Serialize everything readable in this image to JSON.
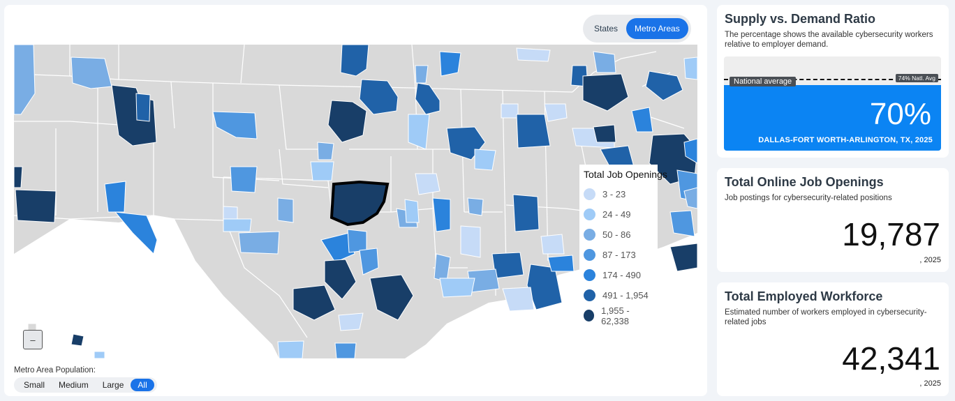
{
  "map": {
    "view_toggle": {
      "states_label": "States",
      "metro_label": "Metro Areas",
      "active": "Metro Areas"
    },
    "legend": {
      "title": "Total Job Openings",
      "items": [
        {
          "label": "3 - 23",
          "color": "#c6dbf7"
        },
        {
          "label": "24 - 49",
          "color": "#9fcbf7"
        },
        {
          "label": "50 - 86",
          "color": "#79ade4"
        },
        {
          "label": "87 - 173",
          "color": "#4f97e0"
        },
        {
          "label": "174 - 490",
          "color": "#2b83dc"
        },
        {
          "label": "491 - 1,954",
          "color": "#2062a8"
        },
        {
          "label": "1,955 - 62,338",
          "color": "#183e68"
        }
      ]
    },
    "zoom_out_label": "–",
    "population_filter": {
      "label": "Metro Area Population:",
      "options": [
        "Small",
        "Medium",
        "Large",
        "All"
      ],
      "active": "All"
    },
    "base_color": "#d9d9d9",
    "selected_outline_color": "#000000"
  },
  "ratio_card": {
    "title": "Supply vs. Demand Ratio",
    "description": "The percentage shows the available cybersecurity workers relative to employer demand.",
    "national_avg_label": "National average",
    "national_avg_tag": "74% Natl. Avg",
    "national_avg_pct": 74,
    "value": "70%",
    "value_pct": 70,
    "metro": "DALLAS-FORT WORTH-ARLINGTON, TX, 2025",
    "fill_color": "#0b84f3"
  },
  "openings_card": {
    "title": "Total Online Job Openings",
    "description": "Job postings for cybersecurity-related positions",
    "value": "19,787",
    "year": ", 2025"
  },
  "workforce_card": {
    "title": "Total Employed Workforce",
    "description": "Estimated number of workers employed in cybersecurity-related jobs",
    "value": "42,341",
    "year": ", 2025"
  }
}
